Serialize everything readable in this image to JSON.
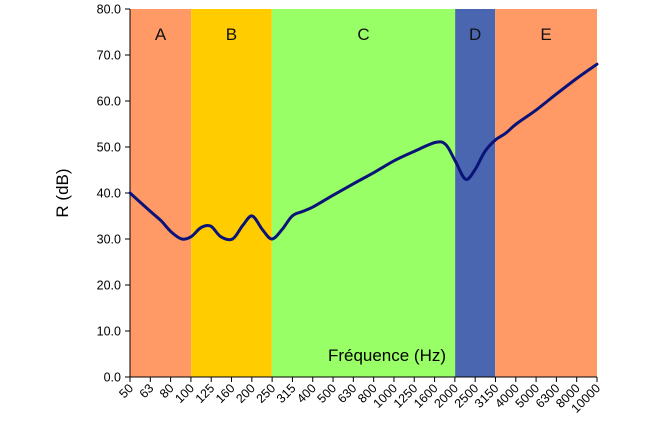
{
  "chart_data": {
    "type": "line",
    "title": "",
    "xlabel": "Fréquence (Hz)",
    "ylabel": "R (dB)",
    "x_scale": "log",
    "ylim": [
      0,
      80
    ],
    "y_ticks": [
      "0.0",
      "10.0",
      "20.0",
      "30.0",
      "40.0",
      "50.0",
      "60.0",
      "70.0",
      "80.0"
    ],
    "x_ticks": [
      "50",
      "63",
      "80",
      "100",
      "125",
      "160",
      "200",
      "250",
      "315",
      "400",
      "500",
      "630",
      "800",
      "1000",
      "1250",
      "1600",
      "2000",
      "2500",
      "3150",
      "4000",
      "5000",
      "6300",
      "8000",
      "10000"
    ],
    "grid": false,
    "legend": "none",
    "zones": [
      {
        "label": "A",
        "from_hz": 50,
        "to_hz": 100,
        "color": "#FF9966"
      },
      {
        "label": "B",
        "from_hz": 100,
        "to_hz": 250,
        "color": "#FFCC00"
      },
      {
        "label": "C",
        "from_hz": 250,
        "to_hz": 2000,
        "color": "#99FF66"
      },
      {
        "label": "D",
        "from_hz": 2000,
        "to_hz": 3150,
        "color": "#4A66B0"
      },
      {
        "label": "E",
        "from_hz": 3150,
        "to_hz": 10000,
        "color": "#FF9966"
      }
    ],
    "series": [
      {
        "color": "#0A1478",
        "x": [
          50,
          63,
          71,
          80,
          90,
          100,
          112,
          125,
          140,
          160,
          180,
          200,
          225,
          250,
          280,
          315,
          355,
          400,
          500,
          630,
          800,
          1000,
          1250,
          1600,
          1800,
          2000,
          2250,
          2500,
          2800,
          3150,
          3550,
          4000,
          5000,
          6300,
          8000,
          10000
        ],
        "y": [
          40,
          36,
          34,
          31.5,
          30,
          30.5,
          32.5,
          32.8,
          30.5,
          30,
          33,
          35,
          32,
          30,
          32,
          35,
          36,
          37,
          39.5,
          42,
          44.5,
          47,
          49,
          51,
          50.5,
          47,
          43,
          45,
          49,
          51.5,
          53,
          55,
          58,
          61.5,
          65,
          68
        ]
      }
    ]
  }
}
